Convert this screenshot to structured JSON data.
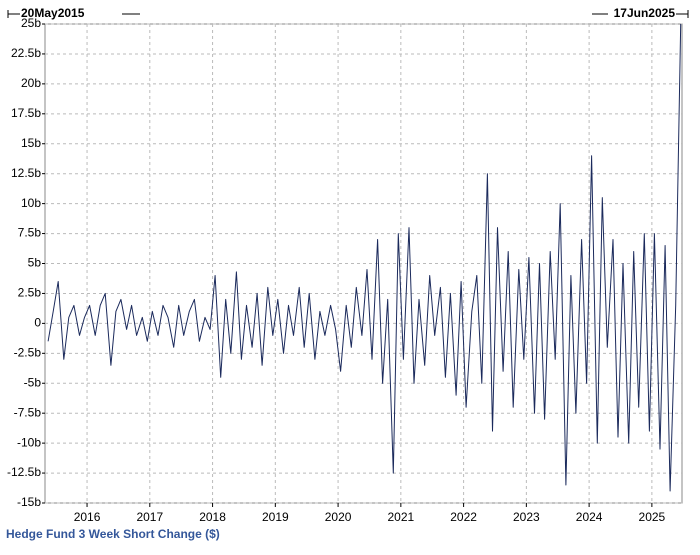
{
  "chart_data": {
    "type": "line",
    "title": "Hedge Fund 3 Week Short Change ($)",
    "start_label": "20May2015",
    "end_label": "17Jun2025",
    "x": [
      2015.38,
      2015.46,
      2015.54,
      2015.63,
      2015.71,
      2015.79,
      2015.88,
      2015.96,
      2016.04,
      2016.13,
      2016.21,
      2016.29,
      2016.38,
      2016.46,
      2016.54,
      2016.63,
      2016.71,
      2016.79,
      2016.88,
      2016.96,
      2017.04,
      2017.13,
      2017.21,
      2017.29,
      2017.38,
      2017.46,
      2017.54,
      2017.63,
      2017.71,
      2017.79,
      2017.88,
      2017.96,
      2018.04,
      2018.13,
      2018.21,
      2018.29,
      2018.38,
      2018.46,
      2018.54,
      2018.63,
      2018.71,
      2018.79,
      2018.88,
      2018.96,
      2019.04,
      2019.13,
      2019.21,
      2019.29,
      2019.38,
      2019.46,
      2019.54,
      2019.63,
      2019.71,
      2019.79,
      2019.88,
      2019.96,
      2020.04,
      2020.13,
      2020.21,
      2020.29,
      2020.38,
      2020.46,
      2020.54,
      2020.63,
      2020.71,
      2020.79,
      2020.88,
      2020.96,
      2021.04,
      2021.13,
      2021.21,
      2021.29,
      2021.38,
      2021.46,
      2021.54,
      2021.63,
      2021.71,
      2021.79,
      2021.88,
      2021.96,
      2022.04,
      2022.13,
      2022.21,
      2022.29,
      2022.38,
      2022.46,
      2022.54,
      2022.63,
      2022.71,
      2022.79,
      2022.88,
      2022.96,
      2023.04,
      2023.13,
      2023.21,
      2023.29,
      2023.38,
      2023.46,
      2023.54,
      2023.63,
      2023.71,
      2023.79,
      2023.88,
      2023.96,
      2024.04,
      2024.13,
      2024.21,
      2024.29,
      2024.38,
      2024.46,
      2024.54,
      2024.63,
      2024.71,
      2024.79,
      2024.88,
      2024.96,
      2025.04,
      2025.13,
      2025.21,
      2025.29,
      2025.38,
      2025.46
    ],
    "series": [
      {
        "color": "#1b2a5c",
        "values": [
          -1.5,
          1,
          3.5,
          -3,
          0.5,
          1.5,
          -1,
          0.5,
          1.5,
          -1,
          1.5,
          2.5,
          -3.5,
          1,
          2,
          -0.5,
          1.5,
          -1,
          0.5,
          -1.5,
          1,
          -1,
          1.5,
          0.5,
          -2,
          1.5,
          -1,
          1,
          2,
          -1.5,
          0.5,
          -0.5,
          4,
          -4.5,
          2,
          -2.5,
          4.3,
          -3,
          1.5,
          -2,
          2.5,
          -3.5,
          3,
          -1,
          2,
          -2.5,
          1.5,
          -1,
          3,
          -2,
          2.5,
          -3,
          1,
          -1,
          1.5,
          -0.5,
          -4,
          1.5,
          -2,
          3,
          -1,
          4.5,
          -3,
          7,
          -5,
          2,
          -12.5,
          7.5,
          -3,
          8,
          -5,
          2,
          -3.5,
          4,
          -1,
          3,
          -4.5,
          2.5,
          -6,
          3.5,
          -7,
          1,
          4,
          -5,
          12.5,
          -9,
          8,
          -4,
          6,
          -7,
          4.5,
          -3,
          5.5,
          -7.5,
          5,
          -8,
          6,
          -3,
          10,
          -13.5,
          4,
          -7.5,
          7,
          -5,
          14,
          -10,
          10.5,
          -2,
          7,
          -9.5,
          5,
          -10,
          6,
          -7,
          7.5,
          -9,
          7.5,
          -10.5,
          6.5,
          -14,
          1.5,
          25
        ]
      }
    ],
    "xlim": [
      2015.33,
      2025.48
    ],
    "xticks": [
      2016,
      2017,
      2018,
      2019,
      2020,
      2021,
      2022,
      2023,
      2024,
      2025
    ],
    "ylim": [
      -15,
      25
    ],
    "yticks": [
      {
        "value": -15,
        "label": "-15b"
      },
      {
        "value": -12.5,
        "label": "-12.5b"
      },
      {
        "value": -10,
        "label": "-10b"
      },
      {
        "value": -7.5,
        "label": "-7.5b"
      },
      {
        "value": -5,
        "label": "-5b"
      },
      {
        "value": -2.5,
        "label": "-2.5b"
      },
      {
        "value": 0,
        "label": "0"
      },
      {
        "value": 2.5,
        "label": "2.5b"
      },
      {
        "value": 5,
        "label": "5b"
      },
      {
        "value": 7.5,
        "label": "7.5b"
      },
      {
        "value": 10,
        "label": "10b"
      },
      {
        "value": 12.5,
        "label": "12.5b"
      },
      {
        "value": 15,
        "label": "15b"
      },
      {
        "value": 17.5,
        "label": "17.5b"
      },
      {
        "value": 20,
        "label": "20b"
      },
      {
        "value": 22.5,
        "label": "22.5b"
      },
      {
        "value": 25,
        "label": "25b"
      }
    ],
    "grid": true
  }
}
